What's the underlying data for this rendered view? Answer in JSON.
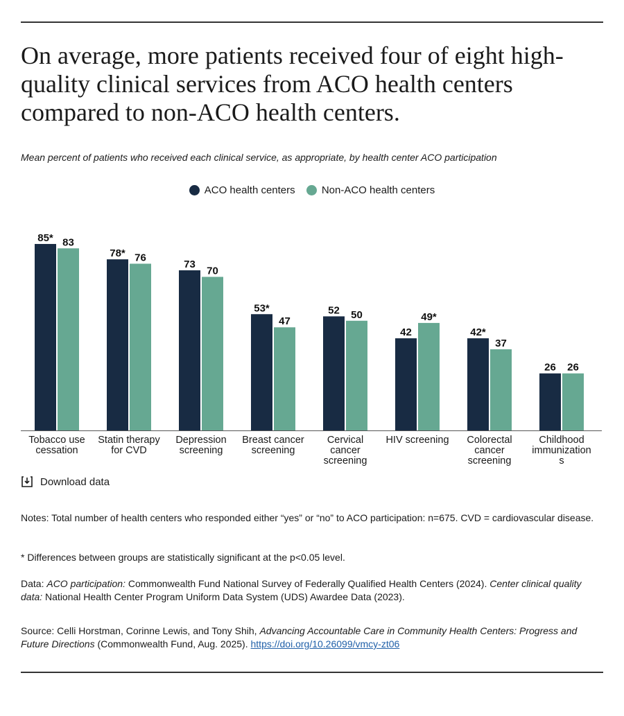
{
  "title": "On average, more patients received four of eight high-quality clinical services from ACO health centers compared to non-ACO health centers.",
  "subtitle": "Mean percent of patients who received each clinical service, as appropriate, by health center ACO participation",
  "colors": {
    "aco": "#182b43",
    "non_aco": "#66a892",
    "rule": "#333333",
    "link": "#1f5fa8"
  },
  "chart_data": {
    "type": "bar",
    "title": "On average, more patients received four of eight high-quality clinical services from ACO health centers compared to non-ACO health centers.",
    "xlabel": "",
    "ylabel": "",
    "ylim": [
      0,
      100
    ],
    "legend_position": "top-center",
    "categories": [
      [
        "Tobacco use",
        "cessation"
      ],
      [
        "Statin therapy",
        "for CVD"
      ],
      [
        "Depression",
        "screening"
      ],
      [
        "Breast cancer",
        "screening"
      ],
      [
        "Cervical",
        "cancer",
        "screening"
      ],
      [
        "HIV screening"
      ],
      [
        "Colorectal",
        "cancer",
        "screening"
      ],
      [
        "Childhood",
        "immunization",
        "s"
      ]
    ],
    "series": [
      {
        "name": "ACO health centers",
        "values": [
          85,
          78,
          73,
          53,
          52,
          42,
          42,
          26
        ],
        "labels": [
          "85*",
          "78*",
          "73",
          "53*",
          "52",
          "42",
          "42*",
          "26"
        ]
      },
      {
        "name": "Non-ACO health centers",
        "values": [
          83,
          76,
          70,
          47,
          50,
          49,
          37,
          26
        ],
        "labels": [
          "83",
          "76",
          "70",
          "47",
          "50",
          "49*",
          "37",
          "26"
        ]
      }
    ]
  },
  "download_label": "Download data",
  "notes": {
    "notes_text": "Notes: Total number of health centers who responded either “yes” or “no” to ACO participation: n=675. CVD = cardiovascular disease.",
    "significance": "* Differences between groups are statistically significant at the p<0.05 level.",
    "data_prefix": "Data: ",
    "data_aco_label": "ACO participation:",
    "data_aco_text": " Commonwealth Fund National Survey of Federally Qualified Health Centers (2024). ",
    "data_quality_label": "Center clinical quality data:",
    "data_quality_text": " National Health Center Program Uniform Data System (UDS) Awardee Data (2023).",
    "source_prefix": "Source: Celli Horstman, Corinne Lewis, and Tony Shih, ",
    "source_title": "Advancing Accountable Care in Community Health Centers: Progress and Future Directions",
    "source_suffix": " (Commonwealth Fund, Aug. 2025). ",
    "source_link": "https://doi.org/10.26099/vmcy-zt06"
  }
}
